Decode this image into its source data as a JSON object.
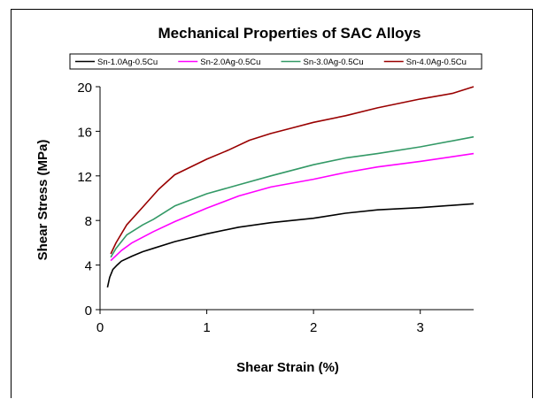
{
  "chart_data": {
    "type": "line",
    "title": "Mechanical Properties of SAC Alloys",
    "xlabel": "Shear Strain (%)",
    "ylabel": "Shear Stress (MPa)",
    "xlim": [
      0,
      3.5
    ],
    "ylim": [
      0,
      20
    ],
    "xticks": [
      0,
      1,
      2,
      3
    ],
    "yticks": [
      0,
      4,
      8,
      12,
      16,
      20
    ],
    "grid": false,
    "legend_position": "top",
    "series": [
      {
        "name": "Sn-1.0Ag-0.5Cu",
        "color": "#000000",
        "points": [
          [
            0.07,
            2.0
          ],
          [
            0.09,
            2.9
          ],
          [
            0.12,
            3.6
          ],
          [
            0.16,
            4.0
          ],
          [
            0.2,
            4.35
          ],
          [
            0.3,
            4.8
          ],
          [
            0.4,
            5.2
          ],
          [
            0.5,
            5.5
          ],
          [
            0.7,
            6.1
          ],
          [
            1.0,
            6.8
          ],
          [
            1.3,
            7.4
          ],
          [
            1.6,
            7.8
          ],
          [
            2.0,
            8.2
          ],
          [
            2.3,
            8.65
          ],
          [
            2.6,
            8.95
          ],
          [
            3.0,
            9.15
          ],
          [
            3.5,
            9.5
          ]
        ]
      },
      {
        "name": "Sn-2.0Ag-0.5Cu",
        "color": "#ff00ff",
        "points": [
          [
            0.1,
            4.4
          ],
          [
            0.2,
            5.3
          ],
          [
            0.3,
            6.0
          ],
          [
            0.5,
            7.0
          ],
          [
            0.7,
            7.9
          ],
          [
            1.0,
            9.1
          ],
          [
            1.3,
            10.2
          ],
          [
            1.6,
            11.0
          ],
          [
            2.0,
            11.7
          ],
          [
            2.3,
            12.3
          ],
          [
            2.6,
            12.8
          ],
          [
            3.0,
            13.3
          ],
          [
            3.5,
            14.0
          ]
        ]
      },
      {
        "name": "Sn-3.0Ag-0.5Cu",
        "color": "#339966",
        "points": [
          [
            0.1,
            4.7
          ],
          [
            0.15,
            5.5
          ],
          [
            0.25,
            6.7
          ],
          [
            0.4,
            7.6
          ],
          [
            0.5,
            8.1
          ],
          [
            0.7,
            9.3
          ],
          [
            1.0,
            10.4
          ],
          [
            1.3,
            11.2
          ],
          [
            1.6,
            12.0
          ],
          [
            2.0,
            13.0
          ],
          [
            2.3,
            13.6
          ],
          [
            2.6,
            14.0
          ],
          [
            3.0,
            14.6
          ],
          [
            3.5,
            15.5
          ]
        ]
      },
      {
        "name": "Sn-4.0Ag-0.5Cu",
        "color": "#990000",
        "points": [
          [
            0.1,
            5.0
          ],
          [
            0.15,
            6.0
          ],
          [
            0.25,
            7.6
          ],
          [
            0.4,
            9.2
          ],
          [
            0.55,
            10.8
          ],
          [
            0.7,
            12.1
          ],
          [
            1.0,
            13.5
          ],
          [
            1.2,
            14.3
          ],
          [
            1.4,
            15.2
          ],
          [
            1.6,
            15.8
          ],
          [
            1.8,
            16.3
          ],
          [
            2.0,
            16.8
          ],
          [
            2.3,
            17.4
          ],
          [
            2.6,
            18.1
          ],
          [
            3.0,
            18.9
          ],
          [
            3.3,
            19.4
          ],
          [
            3.5,
            20.0
          ]
        ]
      }
    ]
  }
}
